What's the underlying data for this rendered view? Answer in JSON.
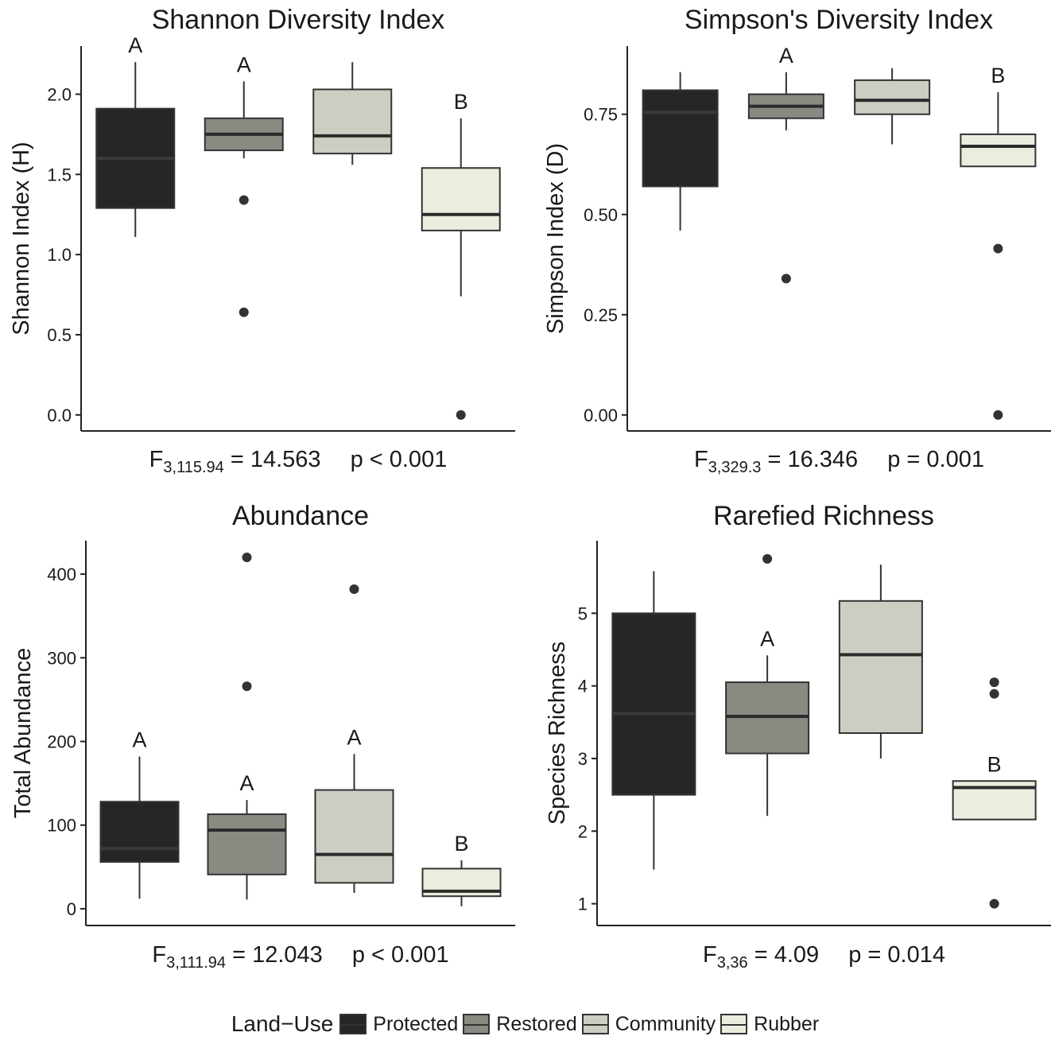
{
  "chart_data": [
    {
      "type": "boxplot",
      "title": "Shannon Diversity Index",
      "ylabel": "Shannon Index (H)",
      "ylim": [
        -0.1,
        2.3
      ],
      "yticks": [
        0.0,
        0.5,
        1.0,
        1.5,
        2.0
      ],
      "ytick_labels": [
        "0.0",
        "0.5",
        "1.0",
        "1.5",
        "2.0"
      ],
      "categories": [
        "Protected",
        "Restored",
        "Community",
        "Rubber"
      ],
      "boxes": [
        {
          "min": 1.11,
          "q1": 1.29,
          "median": 1.6,
          "q3": 1.91,
          "max": 2.2,
          "outliers": [],
          "letter": "A"
        },
        {
          "min": 1.6,
          "q1": 1.65,
          "median": 1.75,
          "q3": 1.85,
          "max": 2.08,
          "outliers": [
            1.34,
            0.64
          ],
          "letter": "A"
        },
        {
          "min": 1.56,
          "q1": 1.63,
          "median": 1.74,
          "q3": 2.03,
          "max": 2.2,
          "outliers": [],
          "letter": ""
        },
        {
          "min": 0.74,
          "q1": 1.15,
          "median": 1.25,
          "q3": 1.54,
          "max": 1.85,
          "outliers": [
            0.0
          ],
          "letter": "B"
        }
      ],
      "stat": {
        "F_sub": "3,115.94",
        "F_val": "= 14.563",
        "p": "p < 0.001"
      }
    },
    {
      "type": "boxplot",
      "title": "Simpson's Diversity Index",
      "ylabel": "Simpson Index (D)",
      "ylim": [
        -0.04,
        0.92
      ],
      "yticks": [
        0.0,
        0.25,
        0.5,
        0.75
      ],
      "ytick_labels": [
        "0.00",
        "0.25",
        "0.50",
        "0.75"
      ],
      "categories": [
        "Protected",
        "Restored",
        "Community",
        "Rubber"
      ],
      "boxes": [
        {
          "min": 0.46,
          "q1": 0.57,
          "median": 0.755,
          "q3": 0.81,
          "max": 0.855,
          "outliers": [],
          "letter": ""
        },
        {
          "min": 0.71,
          "q1": 0.74,
          "median": 0.77,
          "q3": 0.8,
          "max": 0.855,
          "outliers": [
            0.34
          ],
          "letter": "A"
        },
        {
          "min": 0.675,
          "q1": 0.75,
          "median": 0.785,
          "q3": 0.835,
          "max": 0.865,
          "outliers": [],
          "letter": ""
        },
        {
          "min": 0.62,
          "q1": 0.62,
          "median": 0.67,
          "q3": 0.7,
          "max": 0.805,
          "outliers": [
            0.415,
            0.0
          ],
          "letter": "B"
        }
      ],
      "stat": {
        "F_sub": "3,329.3",
        "F_val": "= 16.346",
        "p": "p = 0.001"
      }
    },
    {
      "type": "boxplot",
      "title": "Abundance",
      "ylabel": "Total Abundance",
      "ylim": [
        -20,
        440
      ],
      "yticks": [
        0,
        100,
        200,
        300,
        400
      ],
      "ytick_labels": [
        "0",
        "100",
        "200",
        "300",
        "400"
      ],
      "categories": [
        "Protected",
        "Restored",
        "Community",
        "Rubber"
      ],
      "boxes": [
        {
          "min": 12,
          "q1": 56,
          "median": 72,
          "q3": 128,
          "max": 182,
          "outliers": [],
          "letter": "A"
        },
        {
          "min": 11,
          "q1": 41,
          "median": 94,
          "q3": 113,
          "max": 130,
          "outliers": [
            420,
            266
          ],
          "letter": "A"
        },
        {
          "min": 19,
          "q1": 31,
          "median": 65,
          "q3": 142,
          "max": 185,
          "outliers": [
            382
          ],
          "letter": "A"
        },
        {
          "min": 3,
          "q1": 15,
          "median": 21,
          "q3": 48,
          "max": 58,
          "outliers": [],
          "letter": "B"
        }
      ],
      "stat": {
        "F_sub": "3,111.94",
        "F_val": "= 12.043",
        "p": "p < 0.001"
      }
    },
    {
      "type": "boxplot",
      "title": "Rarefied Richness",
      "ylabel": "Species Richness",
      "ylim": [
        0.7,
        6.0
      ],
      "yticks": [
        1,
        2,
        3,
        4,
        5
      ],
      "ytick_labels": [
        "1",
        "2",
        "3",
        "4",
        "5"
      ],
      "categories": [
        "Protected",
        "Restored",
        "Community",
        "Rubber"
      ],
      "boxes": [
        {
          "min": 1.47,
          "q1": 2.5,
          "median": 3.62,
          "q3": 5.0,
          "max": 5.58,
          "outliers": [],
          "letter": ""
        },
        {
          "min": 2.21,
          "q1": 3.07,
          "median": 3.58,
          "q3": 4.05,
          "max": 4.42,
          "outliers": [
            5.75
          ],
          "letter": "A"
        },
        {
          "min": 3.0,
          "q1": 3.35,
          "median": 4.43,
          "q3": 5.17,
          "max": 5.67,
          "outliers": [],
          "letter": ""
        },
        {
          "min": 2.16,
          "q1": 2.16,
          "median": 2.6,
          "q3": 2.69,
          "max": 2.69,
          "outliers": [
            4.05,
            3.89,
            1.0
          ],
          "letter": "B"
        }
      ],
      "stat": {
        "F_sub": "3,36",
        "F_val": "= 4.09",
        "p": "p = 0.014"
      }
    }
  ],
  "colors": {
    "Protected": "#262626",
    "Restored": "#8a8a83",
    "Community": "#cdcdc3",
    "Rubber": "#ededdf",
    "line": "#333333",
    "median_light": "#2b2b2b",
    "median_dark": "#3a3a3a"
  },
  "legend": {
    "title": "Land−Use",
    "items": [
      {
        "label": "Protected",
        "color": "#262626"
      },
      {
        "label": "Restored",
        "color": "#8a8a83"
      },
      {
        "label": "Community",
        "color": "#cdcdc3"
      },
      {
        "label": "Rubber",
        "color": "#ededdf"
      }
    ]
  }
}
